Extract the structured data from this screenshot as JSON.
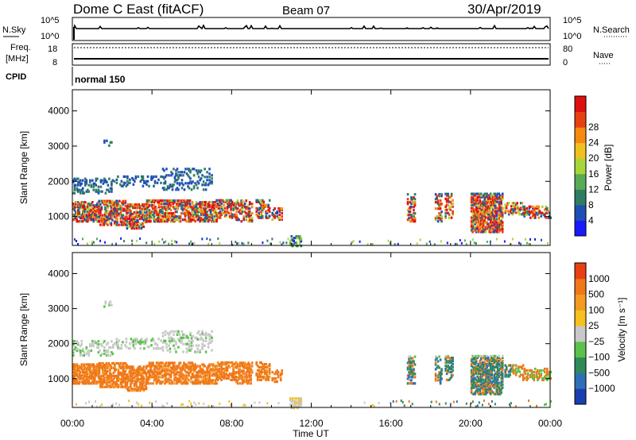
{
  "header": {
    "station": "Dome C East (fitACF)",
    "beam": "Beam 07",
    "date": "30/Apr/2019"
  },
  "aux": {
    "nsky_label": "N.Sky",
    "nsky_ticks": [
      "10^5",
      "10^0"
    ],
    "nsearch_label": "N.Search",
    "freq_label_1": "Freq.",
    "freq_label_2": "[MHz]",
    "freq_ticks": [
      "18",
      "8"
    ],
    "nave_label": "Nave",
    "nave_ticks": [
      "80",
      "0"
    ],
    "cpid_label": "CPID",
    "cpid_text": "normal 150"
  },
  "chart_data": [
    {
      "type": "heatmap",
      "name": "power",
      "ylabel": "Slant Range [km]",
      "y_ticks": [
        "1000",
        "2000",
        "3000",
        "4000"
      ],
      "ylim": [
        180,
        4600
      ],
      "colorbar_label": "Power [dB]",
      "colorbar_ticks": [
        "4",
        "8",
        "12",
        "16",
        "20",
        "24",
        "28"
      ],
      "colors": [
        "#1a1aff",
        "#1f4fb5",
        "#2e7d63",
        "#5aaa55",
        "#a8d63a",
        "#f0c020",
        "#f58a10",
        "#e84010",
        "#e01010"
      ]
    },
    {
      "type": "heatmap",
      "name": "velocity",
      "ylabel": "Slant Range [km]",
      "y_ticks": [
        "1000",
        "2000",
        "3000",
        "4000"
      ],
      "ylim": [
        180,
        4600
      ],
      "colorbar_label": "Velocity [m s⁻¹]",
      "colorbar_ticks": [
        "1000",
        "500",
        "100",
        "25",
        "−25",
        "−100",
        "−500",
        "−1000"
      ],
      "colors": [
        "#1a3fb0",
        "#2f6fb8",
        "#2e8a5a",
        "#5ac24a",
        "#c8c8c8",
        "#f5c020",
        "#f59a20",
        "#f07818",
        "#e84010"
      ]
    }
  ],
  "x_axis": {
    "ticks": [
      "00:00",
      "04:00",
      "08:00",
      "12:00",
      "16:00",
      "20:00",
      "00:00"
    ],
    "xlabel": "Time UT"
  }
}
